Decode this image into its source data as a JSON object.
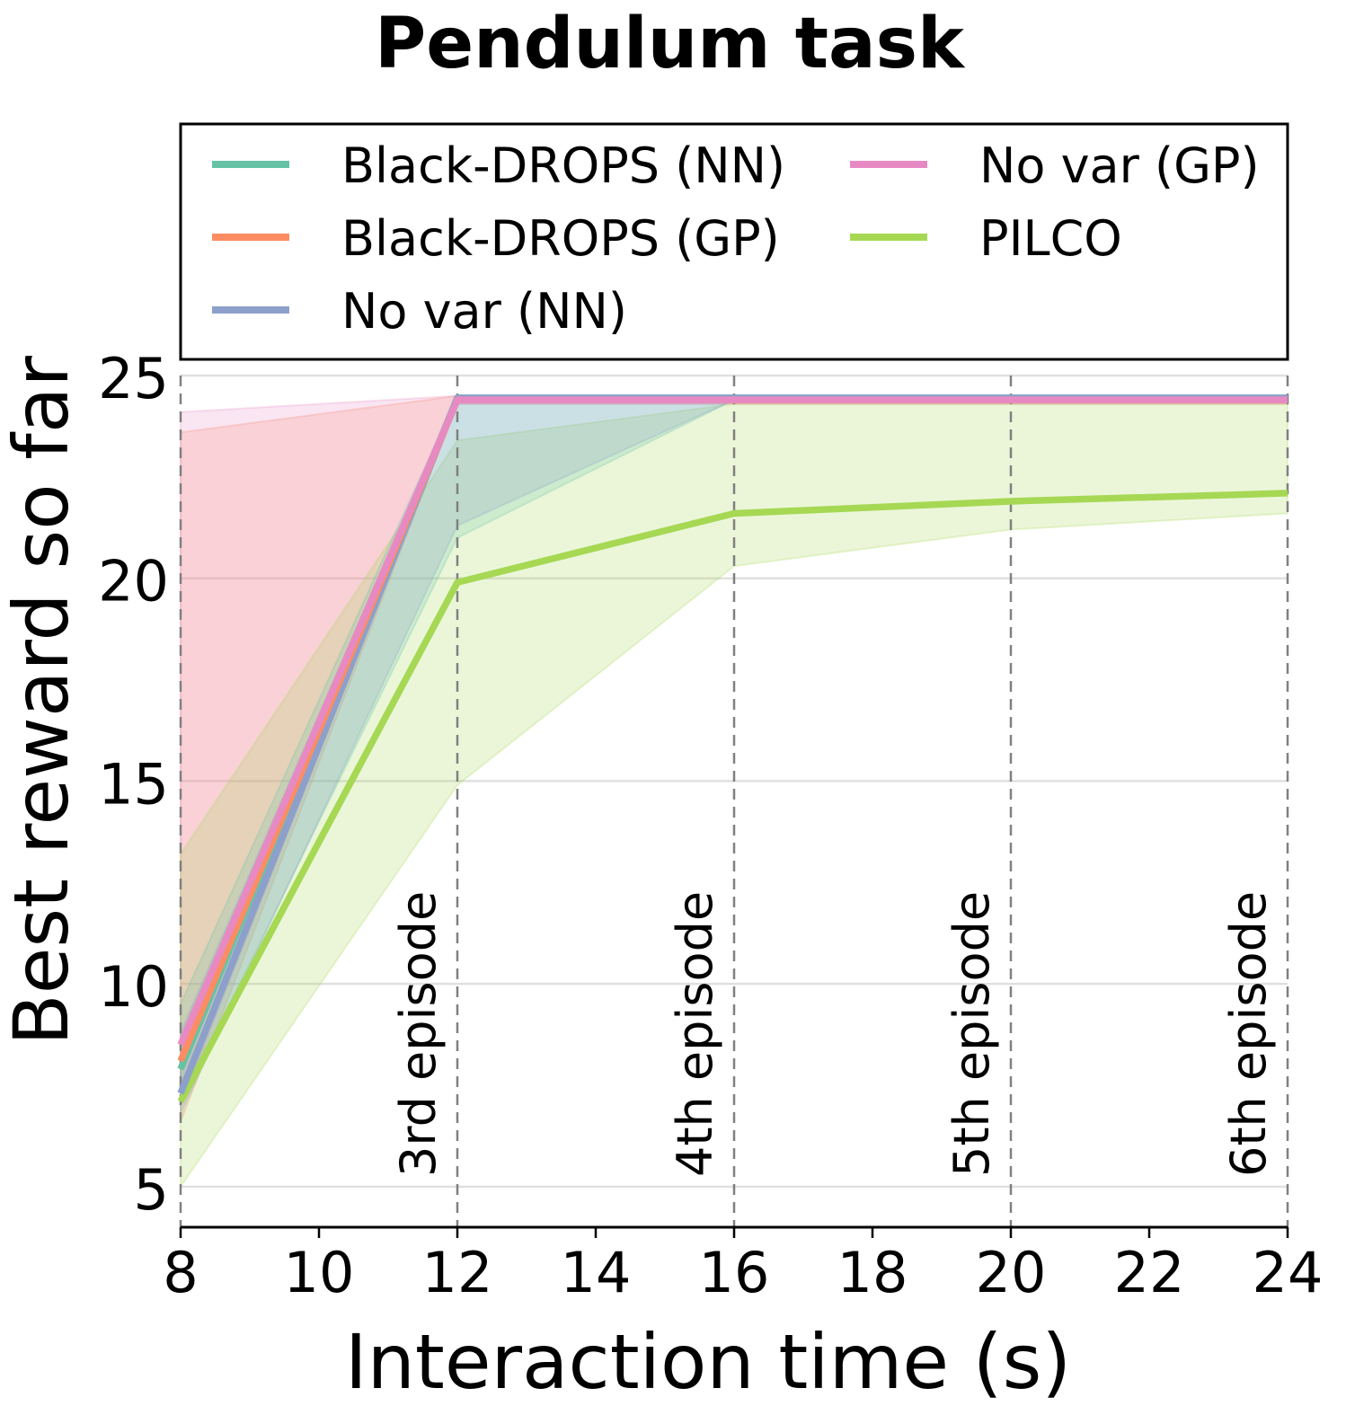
{
  "chart_data": {
    "type": "line",
    "title": "Pendulum task",
    "xlabel": "Interaction time (s)",
    "ylabel": "Best reward so far",
    "xlim": [
      8,
      24
    ],
    "ylim": [
      4,
      25
    ],
    "xticks": [
      "8",
      "10",
      "12",
      "14",
      "16",
      "18",
      "20",
      "22",
      "24"
    ],
    "yticks": [
      "5",
      "10",
      "15",
      "20",
      "25"
    ],
    "grid": "horizontal",
    "legend_placement": "top, above plot, two columns",
    "x": [
      8,
      12,
      16,
      20,
      24
    ],
    "series": [
      {
        "name": "Black-DROPS (NN)",
        "color": "#66c2a5",
        "values": [
          7.9,
          24.45,
          24.45,
          24.45,
          24.45
        ],
        "lower": [
          7.0,
          21.0,
          24.4,
          24.4,
          24.4
        ],
        "upper": [
          9.5,
          24.5,
          24.5,
          24.5,
          24.5
        ]
      },
      {
        "name": "Black-DROPS (GP)",
        "color": "#fc8d62",
        "values": [
          8.1,
          24.4,
          24.4,
          24.4,
          24.4
        ],
        "lower": [
          6.6,
          24.3,
          24.3,
          24.3,
          24.3
        ],
        "upper": [
          23.6,
          24.5,
          24.5,
          24.5,
          24.5
        ]
      },
      {
        "name": "No var (NN)",
        "color": "#8da0cb",
        "values": [
          7.3,
          24.45,
          24.45,
          24.45,
          24.45
        ],
        "lower": [
          6.8,
          21.3,
          24.4,
          24.4,
          24.4
        ],
        "upper": [
          8.8,
          24.5,
          24.5,
          24.5,
          24.5
        ]
      },
      {
        "name": "No var (GP)",
        "color": "#e78ac3",
        "values": [
          8.5,
          24.4,
          24.4,
          24.4,
          24.4
        ],
        "lower": [
          7.0,
          24.3,
          24.3,
          24.3,
          24.3
        ],
        "upper": [
          24.1,
          24.5,
          24.5,
          24.5,
          24.5
        ]
      },
      {
        "name": "PILCO",
        "color": "#a6d854",
        "values": [
          7.1,
          19.9,
          21.6,
          21.9,
          22.1
        ],
        "lower": [
          5.0,
          14.9,
          20.3,
          21.2,
          21.6
        ],
        "upper": [
          13.2,
          23.4,
          24.3,
          24.3,
          24.3
        ]
      }
    ],
    "annotations": [
      {
        "x": 12,
        "text": "3rd episode"
      },
      {
        "x": 16,
        "text": "4th episode"
      },
      {
        "x": 20,
        "text": "5th episode"
      },
      {
        "x": 24,
        "text": "6th episode"
      }
    ]
  }
}
